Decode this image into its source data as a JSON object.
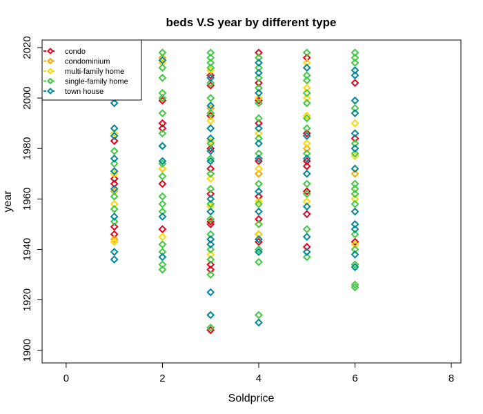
{
  "chart_data": {
    "type": "scatter",
    "title": "beds V.S year by different type",
    "xlabel": "Soldprice",
    "ylabel": "year",
    "xlim": [
      -0.5,
      8.2
    ],
    "ylim": [
      1895,
      2023
    ],
    "xticks": [
      "0",
      "2",
      "4",
      "6",
      "8"
    ],
    "yticks": [
      "1900",
      "1920",
      "1940",
      "1960",
      "1980",
      "2000",
      "2020"
    ],
    "grid": false,
    "legend_position": "top-left",
    "marker": "open-diamond",
    "series": [
      {
        "name": "condo",
        "color": "#e3001b",
        "points": [
          [
            1,
            1983
          ],
          [
            1,
            1968
          ],
          [
            1,
            1966
          ],
          [
            1,
            1949
          ],
          [
            1,
            1946
          ],
          [
            2,
            1999
          ],
          [
            2,
            1990
          ],
          [
            2,
            1988
          ],
          [
            2,
            1972
          ],
          [
            2,
            1966
          ],
          [
            2,
            1948
          ],
          [
            3,
            2009
          ],
          [
            3,
            2005
          ],
          [
            3,
            1993
          ],
          [
            3,
            1980
          ],
          [
            3,
            1972
          ],
          [
            3,
            1962
          ],
          [
            3,
            1951
          ],
          [
            3,
            1950
          ],
          [
            3,
            1934
          ],
          [
            3,
            1932
          ],
          [
            3,
            1908
          ],
          [
            4,
            2018
          ],
          [
            4,
            2006
          ],
          [
            4,
            1999
          ],
          [
            4,
            1990
          ],
          [
            4,
            1975
          ],
          [
            4,
            1961
          ],
          [
            4,
            1952
          ],
          [
            4,
            1946
          ],
          [
            4,
            1943
          ],
          [
            5,
            2016
          ],
          [
            5,
            1986
          ],
          [
            5,
            1975
          ],
          [
            5,
            1973
          ],
          [
            5,
            1963
          ],
          [
            5,
            1954
          ],
          [
            5,
            1941
          ],
          [
            6,
            2006
          ],
          [
            6,
            1984
          ],
          [
            6,
            1943
          ]
        ]
      },
      {
        "name": "condominium",
        "color": "#f5a800",
        "points": [
          [
            1,
            1963
          ],
          [
            1,
            1944
          ],
          [
            2,
            2016
          ],
          [
            3,
            1996
          ],
          [
            3,
            1970
          ],
          [
            4,
            1970
          ],
          [
            4,
            1950
          ],
          [
            5,
            1980
          ],
          [
            6,
            1970
          ]
        ]
      },
      {
        "name": "multi-family home",
        "color": "#ffd700",
        "points": [
          [
            1,
            1986
          ],
          [
            1,
            1970
          ],
          [
            1,
            1958
          ],
          [
            1,
            1943
          ],
          [
            2,
            2014
          ],
          [
            2,
            1972
          ],
          [
            2,
            1945
          ],
          [
            3,
            2011
          ],
          [
            3,
            1991
          ],
          [
            3,
            1983
          ],
          [
            3,
            1968
          ],
          [
            3,
            1957
          ],
          [
            3,
            1938
          ],
          [
            4,
            2016
          ],
          [
            4,
            2000
          ],
          [
            4,
            1986
          ],
          [
            4,
            1972
          ],
          [
            4,
            1959
          ],
          [
            4,
            1946
          ],
          [
            5,
            2014
          ],
          [
            5,
            2004
          ],
          [
            5,
            2000
          ],
          [
            5,
            1993
          ],
          [
            5,
            1982
          ],
          [
            5,
            1959
          ],
          [
            6,
            1990
          ],
          [
            6,
            1977
          ],
          [
            6,
            1960
          ],
          [
            6,
            1942
          ]
        ]
      },
      {
        "name": "single-family home",
        "color": "#3ec93e",
        "points": [
          [
            1,
            1979
          ],
          [
            1,
            1974
          ],
          [
            1,
            1961
          ],
          [
            1,
            1956
          ],
          [
            1,
            1951
          ],
          [
            2,
            2018
          ],
          [
            2,
            2012
          ],
          [
            2,
            2008
          ],
          [
            2,
            2002
          ],
          [
            2,
            2000
          ],
          [
            2,
            1994
          ],
          [
            2,
            1986
          ],
          [
            2,
            1981
          ],
          [
            2,
            1974
          ],
          [
            2,
            1969
          ],
          [
            2,
            1961
          ],
          [
            2,
            1958
          ],
          [
            2,
            1955
          ],
          [
            2,
            1942
          ],
          [
            2,
            1939
          ],
          [
            2,
            1934
          ],
          [
            2,
            1932
          ],
          [
            3,
            2018
          ],
          [
            3,
            2016
          ],
          [
            3,
            2014
          ],
          [
            3,
            2012
          ],
          [
            3,
            2006
          ],
          [
            3,
            2000
          ],
          [
            3,
            1994
          ],
          [
            3,
            1988
          ],
          [
            3,
            1982
          ],
          [
            3,
            1976
          ],
          [
            3,
            1970
          ],
          [
            3,
            1964
          ],
          [
            3,
            1958
          ],
          [
            3,
            1952
          ],
          [
            3,
            1946
          ],
          [
            3,
            1940
          ],
          [
            3,
            1936
          ],
          [
            3,
            1930
          ],
          [
            3,
            1909
          ],
          [
            4,
            2016
          ],
          [
            4,
            2012
          ],
          [
            4,
            2008
          ],
          [
            4,
            2004
          ],
          [
            4,
            1998
          ],
          [
            4,
            1992
          ],
          [
            4,
            1984
          ],
          [
            4,
            1978
          ],
          [
            4,
            1966
          ],
          [
            4,
            1958
          ],
          [
            4,
            1950
          ],
          [
            4,
            1940
          ],
          [
            4,
            1935
          ],
          [
            4,
            1914
          ],
          [
            5,
            2018
          ],
          [
            5,
            2009
          ],
          [
            5,
            2007
          ],
          [
            5,
            2002
          ],
          [
            5,
            1998
          ],
          [
            5,
            1992
          ],
          [
            5,
            1988
          ],
          [
            5,
            1978
          ],
          [
            5,
            1966
          ],
          [
            5,
            1962
          ],
          [
            5,
            1948
          ],
          [
            5,
            1937
          ],
          [
            6,
            2018
          ],
          [
            6,
            2016
          ],
          [
            6,
            2014
          ],
          [
            6,
            1996
          ],
          [
            6,
            1982
          ],
          [
            6,
            1978
          ],
          [
            6,
            1966
          ],
          [
            6,
            1964
          ],
          [
            6,
            1962
          ],
          [
            6,
            1958
          ],
          [
            6,
            1946
          ],
          [
            6,
            1940
          ],
          [
            6,
            1934
          ],
          [
            6,
            1926
          ],
          [
            6,
            1925
          ]
        ]
      },
      {
        "name": "town house",
        "color": "#00879a",
        "points": [
          [
            1,
            2000
          ],
          [
            1,
            1998
          ],
          [
            1,
            1988
          ],
          [
            1,
            1985
          ],
          [
            1,
            1976
          ],
          [
            1,
            1971
          ],
          [
            1,
            1964
          ],
          [
            1,
            1953
          ],
          [
            1,
            1939
          ],
          [
            1,
            1936
          ],
          [
            2,
            2015
          ],
          [
            2,
            1981
          ],
          [
            2,
            1975
          ],
          [
            2,
            1953
          ],
          [
            2,
            1937
          ],
          [
            3,
            2008
          ],
          [
            3,
            1997
          ],
          [
            3,
            1988
          ],
          [
            3,
            1984
          ],
          [
            3,
            1979
          ],
          [
            3,
            1975
          ],
          [
            3,
            1960
          ],
          [
            3,
            1955
          ],
          [
            3,
            1944
          ],
          [
            3,
            1942
          ],
          [
            3,
            1923
          ],
          [
            3,
            1914
          ],
          [
            4,
            2014
          ],
          [
            4,
            2010
          ],
          [
            4,
            2002
          ],
          [
            4,
            1988
          ],
          [
            4,
            1982
          ],
          [
            4,
            1976
          ],
          [
            4,
            1963
          ],
          [
            4,
            1955
          ],
          [
            4,
            1944
          ],
          [
            4,
            1939
          ],
          [
            4,
            1911
          ],
          [
            5,
            2012
          ],
          [
            5,
            1985
          ],
          [
            5,
            1976
          ],
          [
            5,
            1970
          ],
          [
            5,
            1957
          ],
          [
            5,
            1945
          ],
          [
            5,
            1939
          ],
          [
            6,
            2011
          ],
          [
            6,
            2009
          ],
          [
            6,
            1999
          ],
          [
            6,
            1994
          ],
          [
            6,
            1986
          ],
          [
            6,
            1980
          ],
          [
            6,
            1972
          ],
          [
            6,
            1955
          ],
          [
            6,
            1950
          ],
          [
            6,
            1948
          ],
          [
            6,
            1938
          ],
          [
            6,
            1933
          ]
        ]
      }
    ]
  }
}
